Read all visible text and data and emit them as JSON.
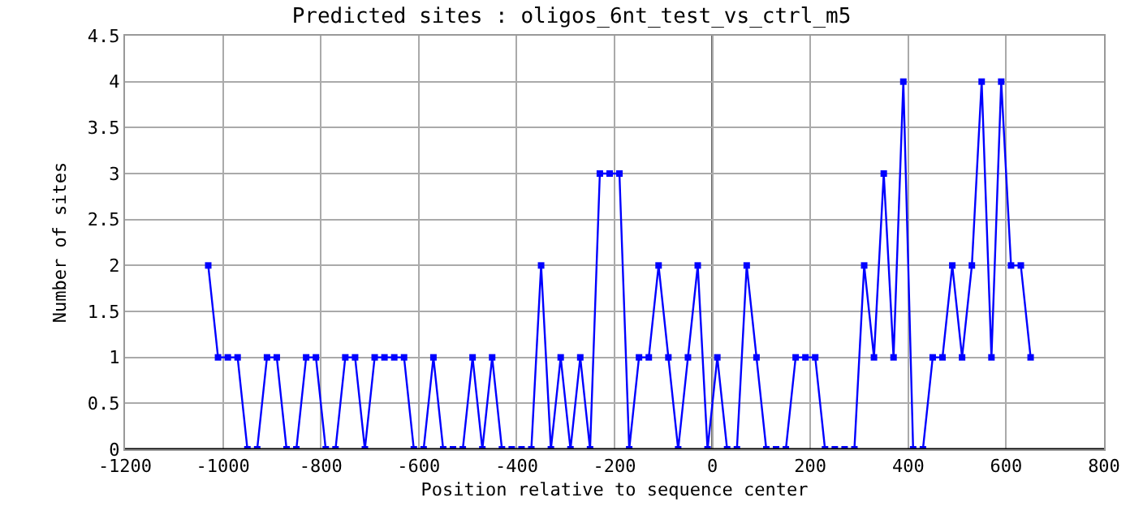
{
  "chart_data": {
    "type": "line",
    "title": "Predicted sites : oligos_6nt_test_vs_ctrl_m5",
    "xlabel": "Position relative to sequence center",
    "ylabel": "Number of sites",
    "x": [
      -1030,
      -1010,
      -990,
      -970,
      -950,
      -930,
      -910,
      -890,
      -870,
      -850,
      -830,
      -810,
      -790,
      -770,
      -750,
      -730,
      -710,
      -690,
      -670,
      -650,
      -630,
      -610,
      -590,
      -570,
      -550,
      -530,
      -510,
      -490,
      -470,
      -450,
      -430,
      -410,
      -390,
      -370,
      -350,
      -330,
      -310,
      -290,
      -270,
      -250,
      -230,
      -210,
      -190,
      -170,
      -150,
      -130,
      -110,
      -90,
      -70,
      -50,
      -30,
      -10,
      10,
      30,
      50,
      70,
      90,
      110,
      130,
      150,
      170,
      190,
      210,
      230,
      250,
      270,
      290,
      310,
      330,
      350,
      370,
      390,
      410,
      430,
      450,
      470,
      490,
      510,
      530,
      550,
      570,
      590,
      610,
      630,
      650
    ],
    "series": [
      {
        "color": "#0000ff",
        "values": [
          2,
          1,
          1,
          1,
          0,
          0,
          1,
          1,
          0,
          0,
          1,
          1,
          0,
          0,
          1,
          1,
          0,
          1,
          1,
          1,
          1,
          0,
          0,
          1,
          0,
          0,
          0,
          1,
          0,
          1,
          0,
          0,
          0,
          0,
          2,
          0,
          1,
          0,
          1,
          0,
          3,
          3,
          3,
          0,
          1,
          1,
          2,
          1,
          0,
          1,
          2,
          0,
          1,
          0,
          0,
          2,
          1,
          0,
          0,
          0,
          1,
          1,
          1,
          0,
          0,
          0,
          0,
          2,
          1,
          3,
          1,
          4,
          0,
          0,
          1,
          1,
          2,
          1,
          2,
          4,
          1,
          4,
          2,
          2,
          1
        ]
      }
    ],
    "xlim": [
      -1200,
      800
    ],
    "xticks": [
      -1200,
      -1000,
      -800,
      -600,
      -400,
      -200,
      0,
      200,
      400,
      600,
      800
    ],
    "ylim": [
      0,
      4.5
    ],
    "yticks": [
      0,
      0.5,
      1,
      1.5,
      2,
      2.5,
      3,
      3.5,
      4,
      4.5
    ],
    "ref_lines": [
      {
        "axis": "x",
        "value": 0,
        "color": "#000000"
      }
    ],
    "grid": true,
    "marker": "square",
    "line_style": "solid"
  }
}
